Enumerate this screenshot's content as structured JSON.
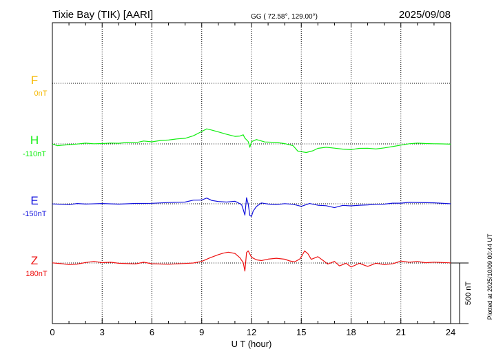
{
  "header": {
    "station": "Tixie Bay (TIK)  [AARI]",
    "coords": "GG ( 72.58°, 129.00°)",
    "date": "2025/09/08"
  },
  "footer": {
    "plotted": "Plotted at 2025/10/09 00:44 UT"
  },
  "scale_bar": {
    "label": "500 nT",
    "value_nT": 500
  },
  "chart_data": {
    "type": "line",
    "title": "Tixie Bay (TIK)  [AARI]",
    "xlabel": "U T (hour)",
    "xlim": [
      0,
      24
    ],
    "xticks": [
      "0",
      "3",
      "6",
      "9",
      "12",
      "15",
      "18",
      "21",
      "24"
    ],
    "grid": true,
    "units": "nT",
    "series": [
      {
        "name": "F",
        "base_label": "0nT",
        "color": "#f5b800",
        "points": []
      },
      {
        "name": "H",
        "base_label": "-110nT",
        "color": "#11ee11",
        "points": [
          [
            0,
            -111
          ],
          [
            0.3,
            -125
          ],
          [
            0.6,
            -121
          ],
          [
            1,
            -116
          ],
          [
            1.5,
            -111
          ],
          [
            2,
            -104
          ],
          [
            2.5,
            -109
          ],
          [
            3,
            -107
          ],
          [
            3.5,
            -103
          ],
          [
            4,
            -105
          ],
          [
            4.5,
            -98
          ],
          [
            5,
            -101
          ],
          [
            5.5,
            -86
          ],
          [
            6,
            -93
          ],
          [
            6.5,
            -82
          ],
          [
            7,
            -78
          ],
          [
            7.5,
            -69
          ],
          [
            8,
            -64
          ],
          [
            8.5,
            -43
          ],
          [
            9,
            -8
          ],
          [
            9.3,
            14
          ],
          [
            9.6,
            4
          ],
          [
            10,
            -11
          ],
          [
            10.5,
            -31
          ],
          [
            11,
            -48
          ],
          [
            11.3,
            -45
          ],
          [
            11.5,
            -35
          ],
          [
            11.6,
            -62
          ],
          [
            11.8,
            -90
          ],
          [
            11.9,
            -138
          ],
          [
            12,
            -92
          ],
          [
            12.3,
            -74
          ],
          [
            12.8,
            -94
          ],
          [
            13.5,
            -98
          ],
          [
            14,
            -108
          ],
          [
            14.5,
            -124
          ],
          [
            14.8,
            -171
          ],
          [
            15,
            -174
          ],
          [
            15.3,
            -181
          ],
          [
            15.7,
            -167
          ],
          [
            16,
            -147
          ],
          [
            16.5,
            -138
          ],
          [
            17,
            -145
          ],
          [
            17.5,
            -153
          ],
          [
            18,
            -157
          ],
          [
            18.5,
            -147
          ],
          [
            19,
            -146
          ],
          [
            19.5,
            -152
          ],
          [
            20,
            -143
          ],
          [
            20.5,
            -132
          ],
          [
            21,
            -120
          ],
          [
            21.5,
            -109
          ],
          [
            22,
            -104
          ],
          [
            22.5,
            -107
          ],
          [
            23,
            -109
          ],
          [
            23.5,
            -110
          ],
          [
            24,
            -112
          ]
        ]
      },
      {
        "name": "E",
        "base_label": "-150nT",
        "color": "#1111dd",
        "points": [
          [
            0,
            -151
          ],
          [
            1,
            -157
          ],
          [
            1.5,
            -148
          ],
          [
            2,
            -152
          ],
          [
            3,
            -148
          ],
          [
            4,
            -153
          ],
          [
            5,
            -147
          ],
          [
            6,
            -146
          ],
          [
            7,
            -140
          ],
          [
            8,
            -136
          ],
          [
            8.5,
            -120
          ],
          [
            9,
            -119
          ],
          [
            9.3,
            -103
          ],
          [
            9.6,
            -122
          ],
          [
            10,
            -131
          ],
          [
            10.5,
            -136
          ],
          [
            11,
            -129
          ],
          [
            11.2,
            -142
          ],
          [
            11.4,
            -157
          ],
          [
            11.5,
            -197
          ],
          [
            11.6,
            -244
          ],
          [
            11.7,
            -100
          ],
          [
            11.8,
            -150
          ],
          [
            11.9,
            -247
          ],
          [
            12,
            -254
          ],
          [
            12.1,
            -211
          ],
          [
            12.3,
            -172
          ],
          [
            12.6,
            -143
          ],
          [
            13,
            -152
          ],
          [
            13.5,
            -157
          ],
          [
            14,
            -149
          ],
          [
            14.5,
            -154
          ],
          [
            15,
            -171
          ],
          [
            15.5,
            -148
          ],
          [
            16,
            -162
          ],
          [
            16.5,
            -166
          ],
          [
            17,
            -182
          ],
          [
            17.5,
            -163
          ],
          [
            18,
            -167
          ],
          [
            18.5,
            -162
          ],
          [
            19,
            -159
          ],
          [
            19.5,
            -154
          ],
          [
            20,
            -153
          ],
          [
            20.5,
            -145
          ],
          [
            21,
            -145
          ],
          [
            21.5,
            -138
          ],
          [
            22,
            -139
          ],
          [
            23,
            -142
          ],
          [
            24,
            -150
          ]
        ]
      },
      {
        "name": "Z",
        "base_label": "180nT",
        "color": "#ee1111",
        "points": [
          [
            0,
            181
          ],
          [
            0.5,
            175
          ],
          [
            1,
            167
          ],
          [
            1.5,
            171
          ],
          [
            2,
            184
          ],
          [
            2.5,
            193
          ],
          [
            3,
            183
          ],
          [
            3.5,
            186
          ],
          [
            4,
            178
          ],
          [
            5,
            172
          ],
          [
            5.5,
            186
          ],
          [
            6,
            174
          ],
          [
            7,
            170
          ],
          [
            8,
            176
          ],
          [
            8.5,
            180
          ],
          [
            9,
            193
          ],
          [
            9.5,
            223
          ],
          [
            10,
            249
          ],
          [
            10.3,
            261
          ],
          [
            10.6,
            269
          ],
          [
            11,
            259
          ],
          [
            11.3,
            224
          ],
          [
            11.5,
            183
          ],
          [
            11.6,
            113
          ],
          [
            11.7,
            266
          ],
          [
            11.8,
            280
          ],
          [
            12,
            227
          ],
          [
            12.3,
            206
          ],
          [
            12.6,
            200
          ],
          [
            13,
            212
          ],
          [
            13.5,
            219
          ],
          [
            14,
            211
          ],
          [
            14.3,
            197
          ],
          [
            14.6,
            189
          ],
          [
            14.9,
            212
          ],
          [
            15,
            230
          ],
          [
            15.2,
            280
          ],
          [
            15.4,
            256
          ],
          [
            15.6,
            210
          ],
          [
            16,
            232
          ],
          [
            16.3,
            202
          ],
          [
            16.6,
            171
          ],
          [
            17,
            193
          ],
          [
            17.3,
            156
          ],
          [
            17.7,
            178
          ],
          [
            18,
            147
          ],
          [
            18.5,
            177
          ],
          [
            19,
            152
          ],
          [
            19.5,
            178
          ],
          [
            20,
            167
          ],
          [
            20.5,
            173
          ],
          [
            21,
            196
          ],
          [
            21.5,
            186
          ],
          [
            22,
            192
          ],
          [
            22.5,
            182
          ],
          [
            23,
            187
          ],
          [
            23.5,
            184
          ],
          [
            24,
            181
          ]
        ]
      }
    ]
  }
}
